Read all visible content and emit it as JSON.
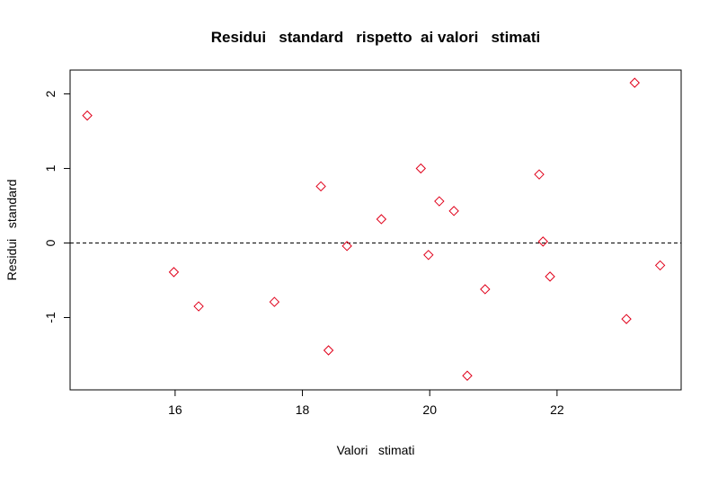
{
  "chart_data": {
    "type": "scatter",
    "title": "Residui   standard   rispetto  ai valori   stimati",
    "xlabel": "Valori   stimati",
    "ylabel": "Residui   standard",
    "xlim": [
      14.35,
      23.95
    ],
    "ylim": [
      -1.97,
      2.32
    ],
    "x_ticks": [
      16,
      18,
      20,
      22
    ],
    "y_ticks": [
      -1,
      0,
      1,
      2
    ],
    "x_tick_labels": [
      "16",
      "18",
      "20",
      "22"
    ],
    "y_tick_labels": [
      "-1",
      "0",
      "1",
      "2"
    ],
    "reference_line": {
      "y": 0,
      "style": "dashed",
      "color": "#000000"
    },
    "marker": "diamond-open",
    "point_color": "#e0001a",
    "grid": false,
    "points": [
      {
        "x": 14.62,
        "y": 1.71
      },
      {
        "x": 15.98,
        "y": -0.39
      },
      {
        "x": 16.37,
        "y": -0.85
      },
      {
        "x": 17.56,
        "y": -0.79
      },
      {
        "x": 18.29,
        "y": 0.76
      },
      {
        "x": 18.41,
        "y": -1.44
      },
      {
        "x": 18.7,
        "y": -0.04
      },
      {
        "x": 19.24,
        "y": 0.32
      },
      {
        "x": 19.86,
        "y": 1.0
      },
      {
        "x": 19.98,
        "y": -0.16
      },
      {
        "x": 20.15,
        "y": 0.56
      },
      {
        "x": 20.38,
        "y": 0.43
      },
      {
        "x": 20.59,
        "y": -1.78
      },
      {
        "x": 20.87,
        "y": -0.62
      },
      {
        "x": 21.72,
        "y": 0.92
      },
      {
        "x": 21.78,
        "y": 0.02
      },
      {
        "x": 21.89,
        "y": -0.45
      },
      {
        "x": 23.09,
        "y": -1.02
      },
      {
        "x": 23.22,
        "y": 2.15
      },
      {
        "x": 23.62,
        "y": -0.3
      }
    ]
  }
}
